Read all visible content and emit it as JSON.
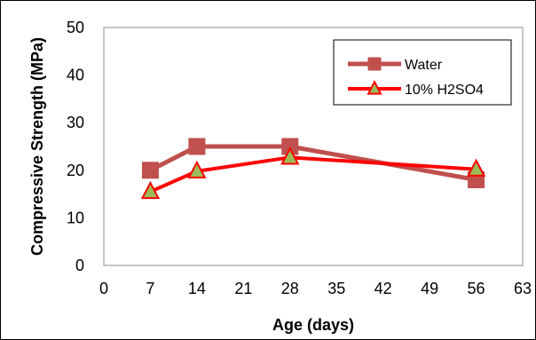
{
  "chart_data": {
    "type": "line",
    "title": "",
    "xlabel": "Age (days)",
    "ylabel": "Compressive Strength (MPa)",
    "xlim": [
      0,
      63
    ],
    "ylim": [
      0,
      50
    ],
    "xticks": [
      0,
      7,
      14,
      21,
      28,
      35,
      42,
      49,
      56,
      63
    ],
    "yticks": [
      0,
      10,
      20,
      30,
      40,
      50
    ],
    "grid": "horizontal",
    "legend_position": "top-right",
    "series": [
      {
        "name": "Water",
        "marker": "square",
        "color": "#c0504d",
        "points": [
          {
            "x": 7,
            "y": 20
          },
          {
            "x": 14,
            "y": 25
          },
          {
            "x": 28,
            "y": 25
          },
          {
            "x": 56,
            "y": 18
          }
        ]
      },
      {
        "name": "10% H2SO4",
        "marker": "triangle",
        "color": "#ff0000",
        "marker_fill": "#9bbb59",
        "points": [
          {
            "x": 7,
            "y": 15.5
          },
          {
            "x": 14,
            "y": 19.8
          },
          {
            "x": 28,
            "y": 22.7
          },
          {
            "x": 56,
            "y": 20.2
          }
        ]
      }
    ]
  }
}
